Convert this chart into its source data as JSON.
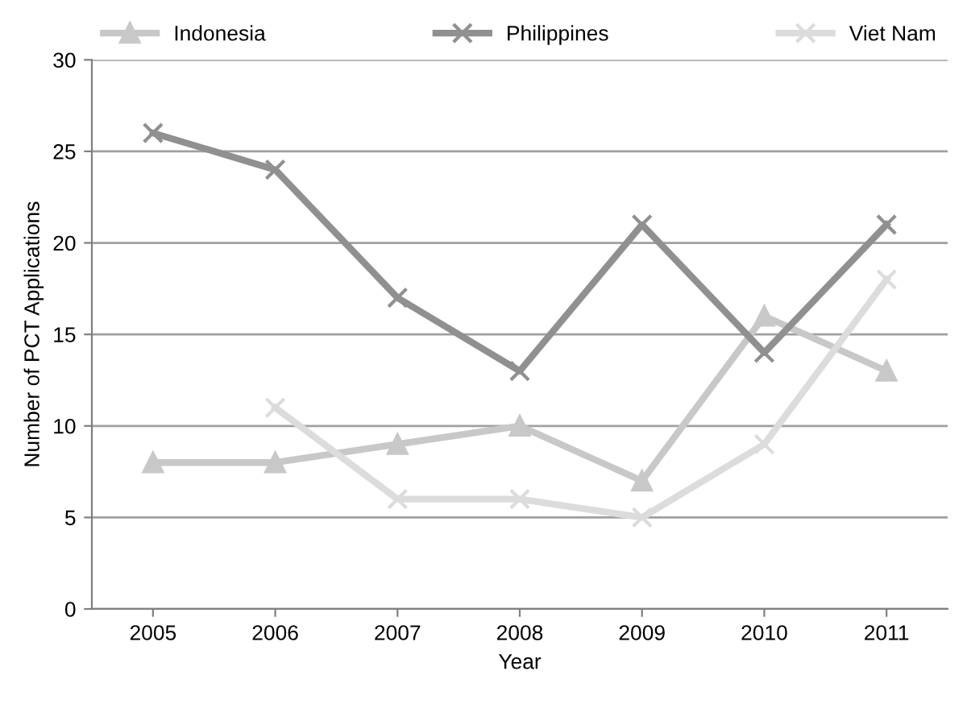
{
  "chart_data": {
    "type": "line",
    "xlabel": "Year",
    "ylabel": "Number of PCT Applications",
    "categories": [
      "2005",
      "2006",
      "2007",
      "2008",
      "2009",
      "2010",
      "2011"
    ],
    "series": [
      {
        "name": "Indonesia",
        "color": "#c8c8c8",
        "marker": "triangle",
        "values": [
          8,
          8,
          9,
          10,
          7,
          16,
          13
        ]
      },
      {
        "name": "Philippines",
        "color": "#909090",
        "marker": "cross",
        "values": [
          26,
          24,
          17,
          13,
          21,
          14,
          21
        ]
      },
      {
        "name": "Viet Nam",
        "color": "#dcdcdc",
        "marker": "cross",
        "values": [
          null,
          11,
          6,
          6,
          5,
          9,
          18
        ]
      }
    ],
    "ylim": [
      0,
      30
    ],
    "yticks": [
      0,
      5,
      10,
      15,
      20,
      25,
      30
    ],
    "grid": "y",
    "legend": "top",
    "line_style": "solid"
  }
}
